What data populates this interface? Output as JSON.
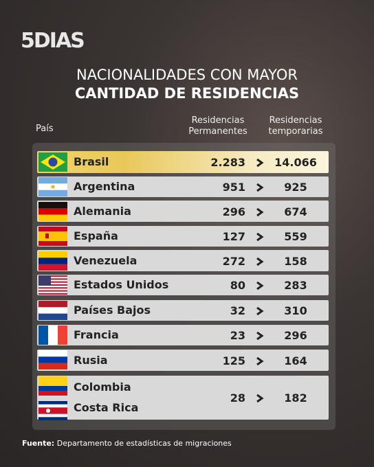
{
  "logo": "5DIAS",
  "title": {
    "line1": "NACIONALIDADES CON MAYOR",
    "line2": "CANTIDAD DE RESIDENCIAS"
  },
  "table": {
    "headers": {
      "country": "País",
      "permanent": "Residencias Permanentes",
      "temporary": "Residencias temporarias"
    },
    "rows": [
      {
        "countries": [
          "Brasil"
        ],
        "permanent": "2.283",
        "temporary": "14.066"
      },
      {
        "countries": [
          "Argentina"
        ],
        "permanent": "951",
        "temporary": "925"
      },
      {
        "countries": [
          "Alemania"
        ],
        "permanent": "296",
        "temporary": "674"
      },
      {
        "countries": [
          "España"
        ],
        "permanent": "127",
        "temporary": "559"
      },
      {
        "countries": [
          "Venezuela"
        ],
        "permanent": "272",
        "temporary": "158"
      },
      {
        "countries": [
          "Estados Unidos"
        ],
        "permanent": "80",
        "temporary": "283"
      },
      {
        "countries": [
          "Países Bajos"
        ],
        "permanent": "32",
        "temporary": "310"
      },
      {
        "countries": [
          "Francia"
        ],
        "permanent": "23",
        "temporary": "296"
      },
      {
        "countries": [
          "Rusia"
        ],
        "permanent": "125",
        "temporary": "164"
      },
      {
        "countries": [
          "Colombia",
          "Costa Rica"
        ],
        "permanent": "28",
        "temporary": "182"
      }
    ]
  },
  "footer": {
    "label": "Fuente:",
    "text": "Departamento de estadísticas de migraciones"
  }
}
